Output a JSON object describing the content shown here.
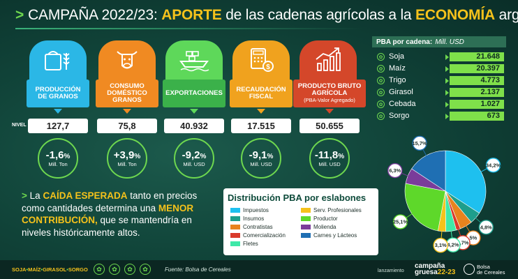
{
  "header": {
    "prefix": "CAMPAÑA 2022/23:",
    "word1": "APORTE",
    "mid": "de las cadenas agrícolas a la",
    "word2": "ECONOMÍA",
    "suffix": "argentina"
  },
  "colors": {
    "produccion": "#2bb7e6",
    "consumo": "#f08a22",
    "exportaciones": "#5ed85a",
    "recaudacion": "#f0a21e",
    "pba": "#d4472a"
  },
  "indicators": [
    {
      "icon": "grain-bag-icon",
      "label_line1": "PRODUCCIÓN",
      "label_line2": "DE GRANOS",
      "label_line3": "",
      "value": "127,7",
      "pct_main": "-1,6",
      "pct_sign": "%",
      "unit": "Mill. Ton"
    },
    {
      "icon": "cow-icon",
      "label_line1": "CONSUMO",
      "label_line2": "DOMÉSTICO",
      "label_line3": "GRANOS",
      "value": "75,8",
      "pct_main": "+3,9",
      "pct_sign": "%",
      "unit": "Mill. Ton"
    },
    {
      "icon": "cargo-ship-icon",
      "label_line1": "EXPORTACIONES",
      "label_line2": "",
      "label_line3": "",
      "value": "40.932",
      "pct_main": "-9,2",
      "pct_sign": "%",
      "unit": "Mill. USD"
    },
    {
      "icon": "calculator-coin-icon",
      "label_line1": "RECAUDACIÓN",
      "label_line2": "FISCAL",
      "label_line3": "",
      "value": "17.515",
      "pct_main": "-9,1",
      "pct_sign": "%",
      "unit": "Mill. USD"
    },
    {
      "icon": "factory-growth-icon",
      "label_line1": "PRODUCTO BRUTO",
      "label_line2": "AGRÍCOLA",
      "label_line3": "(PBA-Valor Agregado)",
      "value": "50.655",
      "pct_main": "-11,8",
      "pct_sign": "%",
      "unit": "Mill. USD"
    }
  ],
  "nivel_label": "NIVEL",
  "pba_cadena": {
    "title_bold": "PBA por cadena:",
    "title_unit": "Mill. USD",
    "rows": [
      {
        "name": "Soja",
        "value": "21.648"
      },
      {
        "name": "Maíz",
        "value": "20.397"
      },
      {
        "name": "Trigo",
        "value": "4.773"
      },
      {
        "name": "Girasol",
        "value": "2.137"
      },
      {
        "name": "Cebada",
        "value": "1.027"
      },
      {
        "name": "Sorgo",
        "value": "673"
      }
    ]
  },
  "summary": {
    "bullet": ">",
    "p1": "La",
    "hl1": "CAÍDA ESPERADA",
    "p2": "tanto en precios como cantidades determina una",
    "hl2": "MENOR CONTRIBUCIÓN,",
    "p3": "que se mantendría en niveles históricamente altos."
  },
  "distribution": {
    "title": "Distribución PBA por eslabones",
    "legend": [
      {
        "name": "Impuestos",
        "color": "#1ec0ef"
      },
      {
        "name": "Insumos",
        "color": "#1e9e8c"
      },
      {
        "name": "Contratistas",
        "color": "#e8831e"
      },
      {
        "name": "Comercialización",
        "color": "#d93a2b"
      },
      {
        "name": "Fletes",
        "color": "#3ee8a8"
      },
      {
        "name": "Serv. Profesionales",
        "color": "#f5c21b"
      },
      {
        "name": "Productor",
        "color": "#5ed82a"
      },
      {
        "name": "Molienda",
        "color": "#7a3c9a"
      },
      {
        "name": "Carnes y Lácteos",
        "color": "#1f6fb3"
      }
    ]
  },
  "chart_data": {
    "type": "pie",
    "slices": [
      {
        "label": "Impuestos",
        "value": 34.2,
        "text": "34,2",
        "color": "#1ec0ef"
      },
      {
        "label": "Insumos",
        "value": 4.8,
        "text": "4,8",
        "color": "#1e9e8c"
      },
      {
        "label": "Contratistas",
        "value": 5.0,
        "text": "5",
        "color": "#e8831e"
      },
      {
        "label": "Comercialización",
        "value": 1.7,
        "text": "1,7",
        "color": "#d93a2b"
      },
      {
        "label": "Fletes",
        "value": 4.2,
        "text": "4,2",
        "color": "#3ee8a8"
      },
      {
        "label": "Serv. Profesionales",
        "value": 3.1,
        "text": "3,1",
        "color": "#f5c21b"
      },
      {
        "label": "Productor",
        "value": 25.1,
        "text": "25,1",
        "color": "#5ed82a"
      },
      {
        "label": "Molienda",
        "value": 6.3,
        "text": "6,3",
        "color": "#7a3c9a"
      },
      {
        "label": "Carnes y Lácteos",
        "value": 15.7,
        "text": "15,7",
        "color": "#1f6fb3"
      }
    ],
    "unit": "%"
  },
  "footer": {
    "crop1": "SOJA",
    "crop2": "MAÍZ",
    "crop3": "GIRASOL",
    "crop4": "SORGO",
    "sep": "•",
    "source": "Fuente: Bolsa de Cereales",
    "launch": "lanzamiento",
    "campaign1": "campaña",
    "campaign2": "gruesa",
    "campaign3": "22-23",
    "bolsa1": "Bolsa",
    "bolsa2": "de Cereales"
  }
}
